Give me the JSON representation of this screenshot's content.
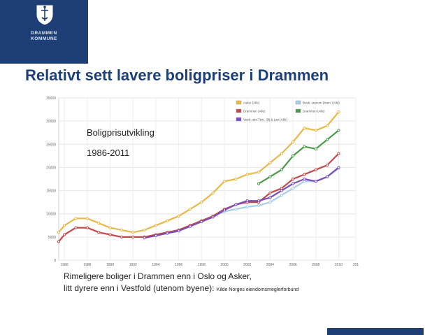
{
  "logo": {
    "line1": "DRAMMEN",
    "line2": "KOMMUNE"
  },
  "title": "Relativt sett lavere boligpriser i Drammen",
  "chart_title": {
    "line1": "Boligprisutvikling",
    "line2": "1986-2011"
  },
  "caption": {
    "line1": "Rimeligere boliger i Drammen enn i Oslo og Asker,",
    "line2": "litt dyrere enn i Vestfold (utenom byene):",
    "source": "Kilde Norges eiendomsmeglerforbund"
  },
  "colors": {
    "brand": "#1e3f75"
  },
  "chart_data": {
    "type": "line",
    "ylim": [
      0,
      35000
    ],
    "xlim": [
      1986,
      2011
    ],
    "y_ticks": [
      0,
      5000,
      10000,
      15000,
      20000,
      25000,
      30000,
      35000
    ],
    "x_ticks": [
      "1986",
      "1988",
      "1990",
      "1992",
      "1994",
      "1996",
      "1998",
      "2000",
      "2002",
      "2004",
      "2006",
      "2008",
      "2010",
      "201"
    ],
    "x_tick_values": [
      1986,
      1988,
      1990,
      1992,
      1994,
      1996,
      1998,
      2000,
      2002,
      2004,
      2006,
      2008,
      2010,
      2011.5
    ],
    "grid": true,
    "legend_position": "top-right",
    "series": [
      {
        "name": "Asker (Alle)",
        "color": "#e8b84a",
        "x": [
          1985.5,
          1986,
          1987,
          1988,
          1989,
          1990,
          1991,
          1992,
          1993,
          1994,
          1995,
          1996,
          1997,
          1998,
          1999,
          2000,
          2001,
          2002,
          2003,
          2004,
          2005,
          2006,
          2007,
          2008,
          2009,
          2010
        ],
        "values": [
          6000,
          7500,
          9000,
          9000,
          8000,
          7000,
          6500,
          6000,
          6500,
          7500,
          8500,
          9500,
          11000,
          12500,
          14500,
          17000,
          17500,
          18500,
          19000,
          21000,
          23000,
          25500,
          28500,
          28000,
          29000,
          32000
        ]
      },
      {
        "name": "Busk. utenom Dram. (Alle)",
        "color": "#a8cde6",
        "x": [
          1993,
          1994,
          1995,
          1996,
          1997,
          1998,
          1999,
          2000,
          2001,
          2002,
          2003,
          2004,
          2005,
          2006,
          2007,
          2008,
          2009,
          2010
        ],
        "values": [
          5000,
          5300,
          5800,
          6500,
          7500,
          8500,
          9500,
          10500,
          11000,
          11500,
          11800,
          12500,
          14000,
          15500,
          17000,
          17000,
          18000,
          19800
        ]
      },
      {
        "name": "Drammen (Alle)",
        "color": "#c44a4a",
        "x": [
          1985.5,
          1986,
          1987,
          1988,
          1989,
          1990,
          1991,
          1992,
          1993,
          1994,
          1995,
          1996,
          1997,
          1998,
          1999,
          2000,
          2001,
          2002,
          2003,
          2004,
          2005,
          2006,
          2007,
          2008,
          2009,
          2010
        ],
        "values": [
          4000,
          5500,
          7000,
          7000,
          6000,
          5500,
          5000,
          5000,
          5000,
          5500,
          6000,
          6500,
          7500,
          8500,
          9500,
          11000,
          12000,
          12500,
          12500,
          14500,
          15500,
          17500,
          18500,
          19500,
          20500,
          23000
        ]
      },
      {
        "name": "Drammen (Alle)",
        "color": "#4a9a4a",
        "legend_hidden": true,
        "x": [
          2003,
          2004,
          2005,
          2006,
          2007,
          2008,
          2009,
          2010
        ],
        "values": [
          16500,
          18000,
          19500,
          22500,
          24500,
          24000,
          26000,
          28000
        ]
      },
      {
        "name": "Vestf. utm Tøn., Sfj & Lav (Alle)",
        "color": "#7b4dbd",
        "x": [
          1993,
          1994,
          1995,
          1996,
          1997,
          1998,
          1999,
          2000,
          2001,
          2002,
          2003,
          2004,
          2005,
          2006,
          2007,
          2008,
          2009,
          2010
        ],
        "values": [
          4800,
          5300,
          5800,
          6300,
          7300,
          8300,
          9300,
          10800,
          12000,
          12800,
          12800,
          13500,
          15000,
          16500,
          17500,
          17000,
          18000,
          20000
        ]
      }
    ],
    "legend": [
      {
        "label": "Asker (Alle)",
        "color": "#e8b84a"
      },
      {
        "label": "Busk. utenom Dram. (Alle)",
        "color": "#a8cde6"
      },
      {
        "label": "Drammen (Alle)",
        "color": "#c44a4a"
      },
      {
        "label": "Drammen (Alle)",
        "color": "#4a9a4a"
      },
      {
        "label": "Vestf. utm Tøn., Sfj & Lav (Alle)",
        "color": "#7b4dbd"
      }
    ]
  }
}
